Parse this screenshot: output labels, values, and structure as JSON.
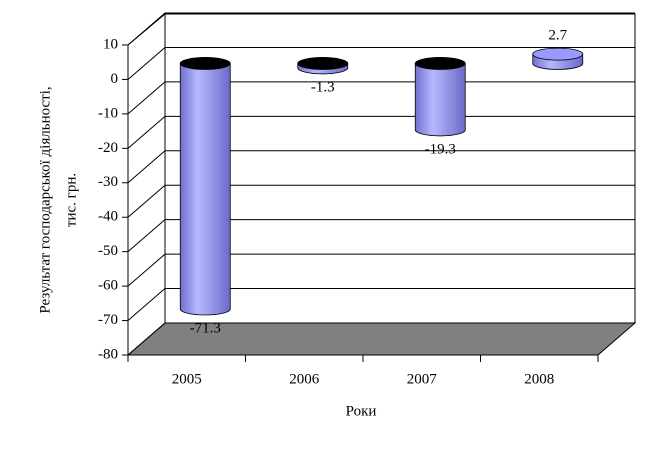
{
  "chart_data": {
    "type": "bar3d",
    "y_label": [
      "Результат господарської діяльності,",
      "тис. грн."
    ],
    "x_label": "Роки",
    "categories": [
      "2005",
      "2006",
      "2007",
      "2008"
    ],
    "values": [
      -71.3,
      -1.3,
      -19.3,
      2.7
    ],
    "color": "#9999ff",
    "ylim": [
      -80,
      10
    ],
    "yticks": [
      -80,
      -70,
      -60,
      -50,
      -40,
      -30,
      -20,
      -10,
      0,
      10
    ],
    "grid": true
  }
}
